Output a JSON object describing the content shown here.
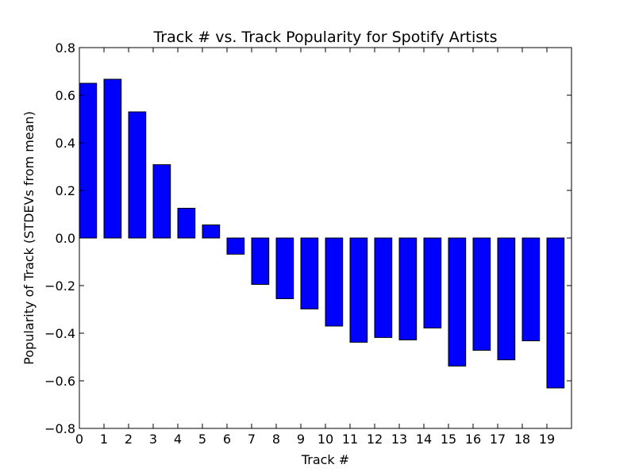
{
  "chart_data": {
    "type": "bar",
    "title": "Track # vs. Track Popularity for Spotify Artists",
    "xlabel": "Track #",
    "ylabel": "Popularity of Track (STDEVs from mean)",
    "x": [
      0,
      1,
      2,
      3,
      4,
      5,
      6,
      7,
      8,
      9,
      10,
      11,
      12,
      13,
      14,
      15,
      16,
      17,
      18,
      19
    ],
    "values": [
      0.65,
      0.667,
      0.53,
      0.308,
      0.125,
      0.055,
      -0.068,
      -0.195,
      -0.255,
      -0.298,
      -0.37,
      -0.438,
      -0.418,
      -0.428,
      -0.378,
      -0.538,
      -0.472,
      -0.512,
      -0.432,
      -0.63
    ],
    "xlim": [
      0,
      20
    ],
    "ylim": [
      -0.8,
      0.8
    ],
    "xticks": [
      "0",
      "1",
      "2",
      "3",
      "4",
      "5",
      "6",
      "7",
      "8",
      "9",
      "10",
      "11",
      "12",
      "13",
      "14",
      "15",
      "16",
      "17",
      "18",
      "19"
    ],
    "yticks": [
      -0.8,
      -0.6,
      -0.4,
      -0.2,
      0.0,
      0.2,
      0.4,
      0.6,
      0.8
    ],
    "ytick_labels": [
      "−0.8",
      "−0.6",
      "−0.4",
      "−0.2",
      "0.0",
      "0.2",
      "0.4",
      "0.6",
      "0.8"
    ],
    "bar_width": 0.7,
    "grid": false,
    "legend": false,
    "colors": {
      "bar": "#0000ff",
      "edge": "#000000"
    }
  }
}
